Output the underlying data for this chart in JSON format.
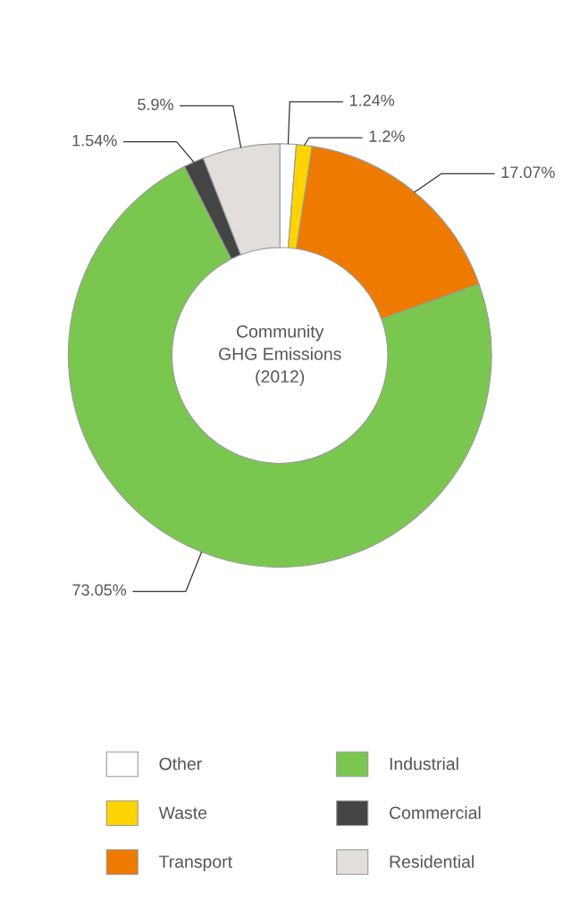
{
  "chart_data": {
    "type": "donut",
    "title": "Community\nGHG Emissions\n(2012)",
    "categories": [
      "Other",
      "Waste",
      "Transport",
      "Industrial",
      "Commercial",
      "Residential"
    ],
    "values": [
      1.24,
      1.2,
      17.07,
      73.05,
      1.54,
      5.9
    ],
    "value_labels": [
      "1.24%",
      "1.2%",
      "17.07%",
      "73.05%",
      "1.54%",
      "5.9%"
    ],
    "colors": [
      "#ffffff",
      "#ffd400",
      "#ee7a00",
      "#7ac74f",
      "#444444",
      "#e3dedb"
    ],
    "legend": "bottom"
  }
}
